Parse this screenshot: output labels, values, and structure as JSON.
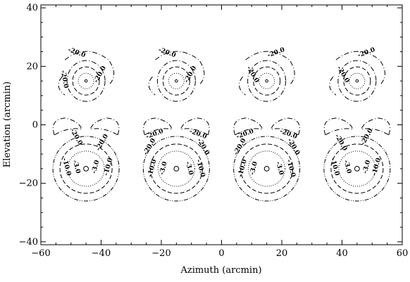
{
  "chart_data": {
    "type": "contour",
    "xlabel": "Azimuth (arcmin)",
    "ylabel": "Elevation (arcmin)",
    "xlim": [
      -60,
      60
    ],
    "ylim": [
      -41,
      41
    ],
    "xticks": [
      -60,
      -40,
      -20,
      0,
      20,
      40,
      60
    ],
    "yticks": [
      -40,
      -20,
      0,
      20,
      40
    ],
    "grid": false,
    "legend": "none",
    "contour_levels": [
      "-3.0",
      "-10.0",
      "-20.0"
    ],
    "beams": [
      {
        "az": -45,
        "el": 15,
        "row": "upper",
        "labels": [
          "-20.0",
          "-20.0",
          "-20.0"
        ]
      },
      {
        "az": -15,
        "el": 15,
        "row": "upper",
        "labels": [
          "-20.0",
          "-20.0"
        ]
      },
      {
        "az": 15,
        "el": 15,
        "row": "upper",
        "labels": [
          "-20.0",
          "-20.0"
        ]
      },
      {
        "az": 45,
        "el": 15,
        "row": "upper",
        "labels": [
          "-20.0",
          "-20.0"
        ]
      },
      {
        "az": -45,
        "el": -15,
        "row": "lower",
        "labels": [
          "-20.0",
          "-20.0",
          "-10.0",
          "-10.0",
          "-3.0",
          "-3.0"
        ]
      },
      {
        "az": -15,
        "el": -15,
        "row": "lower",
        "labels": [
          "-20.0",
          "-20.0",
          "-20.0",
          "-20.0",
          "-10.0",
          "-10.0",
          "-3.0",
          "-3.0"
        ]
      },
      {
        "az": 15,
        "el": -15,
        "row": "lower",
        "labels": [
          "-20.0",
          "-20.0",
          "-20.0",
          "-20.0",
          "-10.0",
          "-10.0",
          "-3.0",
          "-3.0"
        ]
      },
      {
        "az": 45,
        "el": -15,
        "row": "lower",
        "labels": [
          "-20.0",
          "-20.0",
          "-10.0",
          "-10.0",
          "-3.0",
          "-3.0"
        ]
      }
    ],
    "colors": {
      "line": "#000000",
      "background": "#ffffff"
    }
  }
}
